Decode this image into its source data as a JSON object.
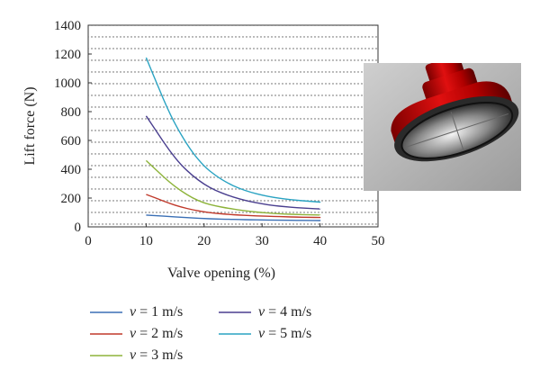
{
  "chart_data": {
    "type": "line",
    "xlabel": "Valve opening (%)",
    "ylabel": "Lift force (N)",
    "xlim": [
      0,
      50
    ],
    "ylim": [
      0,
      1400
    ],
    "xticks": [
      0,
      10,
      20,
      30,
      40,
      50
    ],
    "yticks": [
      0,
      200,
      400,
      600,
      800,
      1000,
      1200,
      1400
    ],
    "grid": "dotted",
    "legend_position": "bottom",
    "legend_var": "v",
    "x": [
      10,
      12,
      14,
      16,
      18,
      20,
      22,
      24,
      26,
      28,
      30,
      32,
      34,
      36,
      38,
      40
    ],
    "series": [
      {
        "name": "= 1 m/s",
        "color": "#3a6fb5",
        "values": [
          82,
          77,
          72,
          67,
          62,
          58,
          55,
          53,
          51,
          49,
          48,
          47,
          46,
          45,
          45,
          44
        ]
      },
      {
        "name": "= 2 m/s",
        "color": "#c0392b",
        "values": [
          225,
          195,
          163,
          138,
          118,
          104,
          94,
          87,
          82,
          78,
          75,
          72,
          70,
          68,
          66,
          65
        ]
      },
      {
        "name": "= 3 m/s",
        "color": "#8db33a",
        "values": [
          460,
          385,
          310,
          250,
          200,
          165,
          145,
          130,
          117,
          107,
          99,
          93,
          89,
          86,
          84,
          82
        ]
      },
      {
        "name": "= 4 m/s",
        "color": "#4a3f8f",
        "values": [
          770,
          650,
          530,
          430,
          355,
          295,
          252,
          220,
          195,
          175,
          160,
          148,
          140,
          133,
          128,
          125
        ]
      },
      {
        "name": "= 5 m/s",
        "color": "#2aa3c2",
        "values": [
          1175,
          980,
          790,
          640,
          515,
          420,
          355,
          305,
          268,
          240,
          220,
          204,
          193,
          185,
          178,
          172
        ]
      }
    ]
  },
  "image": {
    "subject": "red-valve-cap-render"
  }
}
